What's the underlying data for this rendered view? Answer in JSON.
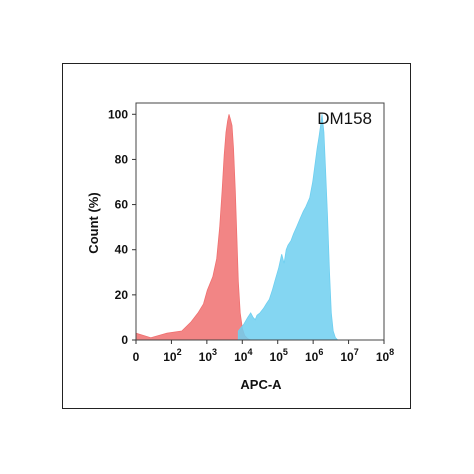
{
  "chart_data": {
    "type": "area",
    "title": "",
    "annotation": "DM158",
    "xlabel": "APC-A",
    "ylabel": "Count  (%)",
    "xscale": "log",
    "xlim": [
      1,
      100000000
    ],
    "ylim": [
      0,
      105
    ],
    "grid": false,
    "x_ticks": [
      {
        "base": "0",
        "exp": ""
      },
      {
        "base": "10",
        "exp": "2"
      },
      {
        "base": "10",
        "exp": "3"
      },
      {
        "base": "10",
        "exp": "4"
      },
      {
        "base": "10",
        "exp": "5"
      },
      {
        "base": "10",
        "exp": "6"
      },
      {
        "base": "10",
        "exp": "7"
      },
      {
        "base": "10",
        "exp": "8"
      }
    ],
    "y_ticks": [
      0,
      20,
      40,
      60,
      80,
      100
    ],
    "series": [
      {
        "color": "#f07070",
        "x": [
          1,
          3,
          10,
          30,
          60,
          100,
          150,
          200,
          300,
          400,
          500,
          600,
          700,
          800,
          900,
          1000,
          1100,
          1250,
          1400,
          1600,
          1800,
          2000,
          2300,
          2700,
          3200,
          4000,
          5000
        ],
        "y": [
          3,
          1,
          3,
          4,
          8,
          12,
          16,
          22,
          28,
          36,
          50,
          66,
          82,
          92,
          97,
          100,
          98,
          95,
          85,
          66,
          45,
          26,
          12,
          5,
          2,
          0.6,
          0
        ]
      },
      {
        "color": "#6ecff0",
        "x": [
          2000,
          3000,
          4000,
          5000,
          6000,
          7000,
          8000,
          10000,
          13000,
          16000,
          20000,
          25000,
          30000,
          40000,
          50000,
          60000,
          70000,
          80000,
          100000,
          120000,
          150000,
          200000,
          250000,
          300000,
          400000,
          500000,
          600000,
          700000,
          800000,
          900000,
          1000000,
          1150000,
          1300000,
          1500000,
          1750000,
          2000000,
          2300000,
          2700000,
          3200000
        ],
        "y": [
          4,
          7,
          10,
          12,
          10,
          9,
          11,
          12,
          14,
          16,
          18,
          22,
          26,
          32,
          38,
          34,
          40,
          42,
          44,
          47,
          50,
          54,
          57,
          59,
          63,
          70,
          78,
          85,
          90,
          95,
          100,
          92,
          76,
          55,
          30,
          12,
          4,
          1,
          0
        ]
      }
    ]
  }
}
